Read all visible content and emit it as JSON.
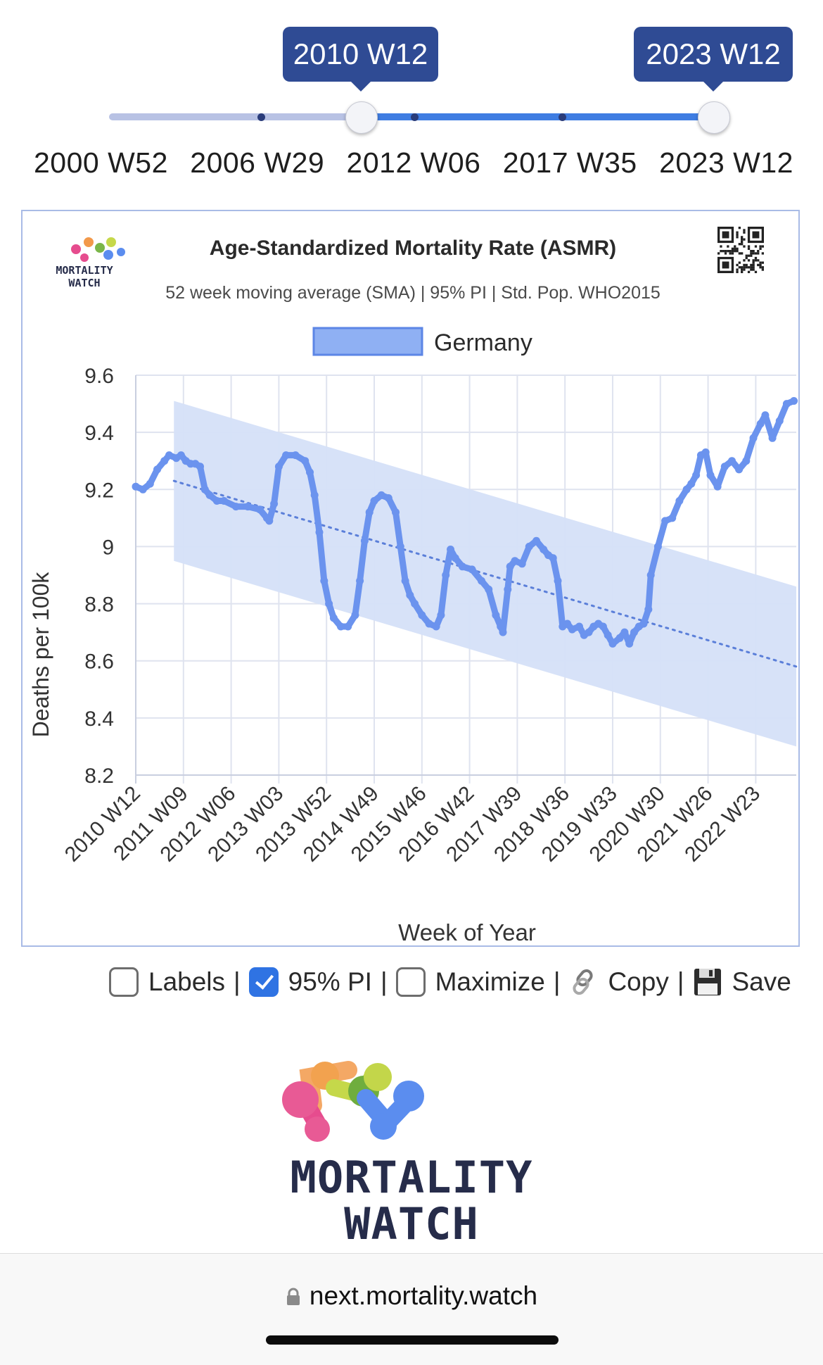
{
  "slider": {
    "start_label": "2010 W12",
    "end_label": "2023 W12",
    "start_index": 2,
    "end_index": 4,
    "range_labels": [
      "2000 W52",
      "2006 W29",
      "2012 W06",
      "2017 W35",
      "2023 W12"
    ]
  },
  "chart_header": {
    "logo_text_line1": "MORTALITY",
    "logo_text_line2": "WATCH"
  },
  "chart_data": {
    "type": "line",
    "title": "Age-Standardized Mortality Rate (ASMR)",
    "subtitle": "52 week moving average (SMA) | 95% PI | Std. Pop. WHO2015",
    "xlabel": "Week of Year",
    "ylabel": "Deaths per 100k",
    "ylim": [
      8.2,
      9.6
    ],
    "y_ticks": [
      "9.6",
      "9.4",
      "9.2",
      "9",
      "8.8",
      "8.6",
      "8.4",
      "8.2"
    ],
    "y_tick_values": [
      9.6,
      9.4,
      9.2,
      9.0,
      8.8,
      8.6,
      8.4,
      8.2
    ],
    "x_ticks": [
      "2010 W12",
      "2011 W09",
      "2012 W06",
      "2013 W03",
      "2013 W52",
      "2014 W49",
      "2015 W46",
      "2016 W42",
      "2017 W39",
      "2018 W36",
      "2019 W33",
      "2020 W30",
      "2021 W26",
      "2022 W23"
    ],
    "x_range_years": [
      2010.2,
      2024.05
    ],
    "legend": {
      "label": "Germany",
      "placement": "top-center"
    },
    "grid": true,
    "series_color": "#6b93ee",
    "band_color": "#d5e0f8",
    "series": [
      {
        "name": "Germany",
        "x": [
          2010.2,
          2010.35,
          2010.5,
          2010.65,
          2010.8,
          2010.9,
          2011.05,
          2011.15,
          2011.25,
          2011.35,
          2011.45,
          2011.55,
          2011.65,
          2011.75,
          2011.9,
          2012.05,
          2012.3,
          2012.55,
          2012.8,
          2012.95,
          2013.0,
          2013.1,
          2013.2,
          2013.35,
          2013.55,
          2013.75,
          2013.85,
          2013.95,
          2014.05,
          2014.15,
          2014.25,
          2014.35,
          2014.5,
          2014.65,
          2014.8,
          2014.9,
          2015.0,
          2015.1,
          2015.2,
          2015.35,
          2015.5,
          2015.65,
          2015.75,
          2015.85,
          2015.95,
          2016.05,
          2016.2,
          2016.35,
          2016.5,
          2016.6,
          2016.7,
          2016.8,
          2016.9,
          2017.05,
          2017.25,
          2017.45,
          2017.6,
          2017.75,
          2017.85,
          2017.9,
          2018.0,
          2018.05,
          2018.15,
          2018.3,
          2018.45,
          2018.6,
          2018.75,
          2018.85,
          2018.95,
          2019.05,
          2019.15,
          2019.25,
          2019.35,
          2019.5,
          2019.6,
          2019.7,
          2019.8,
          2019.9,
          2020.0,
          2020.1,
          2020.2,
          2020.35,
          2020.45,
          2020.55,
          2020.65,
          2020.75,
          2020.85,
          2020.95,
          2021.0,
          2021.15,
          2021.3,
          2021.45,
          2021.6,
          2021.75,
          2021.85,
          2021.95,
          2022.05,
          2022.15,
          2022.25,
          2022.4,
          2022.55,
          2022.7,
          2022.85,
          2023.0,
          2023.15,
          2023.3,
          2023.4,
          2023.55,
          2023.7,
          2023.85,
          2024.0
        ],
        "values": [
          9.21,
          9.2,
          9.22,
          9.27,
          9.3,
          9.32,
          9.31,
          9.32,
          9.3,
          9.29,
          9.29,
          9.28,
          9.2,
          9.18,
          9.16,
          9.16,
          9.14,
          9.14,
          9.13,
          9.1,
          9.09,
          9.15,
          9.28,
          9.32,
          9.32,
          9.3,
          9.26,
          9.18,
          9.05,
          8.88,
          8.8,
          8.75,
          8.72,
          8.72,
          8.76,
          8.88,
          9.02,
          9.12,
          9.16,
          9.18,
          9.17,
          9.12,
          9.0,
          8.88,
          8.83,
          8.8,
          8.76,
          8.73,
          8.72,
          8.76,
          8.9,
          8.99,
          8.96,
          8.93,
          8.92,
          8.88,
          8.85,
          8.76,
          8.72,
          8.7,
          8.85,
          8.93,
          8.95,
          8.94,
          9.0,
          9.02,
          8.99,
          8.97,
          8.96,
          8.88,
          8.72,
          8.73,
          8.71,
          8.72,
          8.69,
          8.7,
          8.72,
          8.73,
          8.72,
          8.69,
          8.66,
          8.68,
          8.7,
          8.66,
          8.7,
          8.72,
          8.73,
          8.78,
          8.9,
          9.0,
          9.09,
          9.1,
          9.16,
          9.2,
          9.22,
          9.25,
          9.32,
          9.33,
          9.25,
          9.21,
          9.28,
          9.3,
          9.27,
          9.3,
          9.38,
          9.43,
          9.46,
          9.38,
          9.44,
          9.5,
          9.51
        ]
      },
      {
        "name": "Baseline",
        "x": [
          2011.0,
          2024.05
        ],
        "values": [
          9.23,
          8.58
        ]
      }
    ],
    "prediction_interval": {
      "x": [
        2011.0,
        2024.05
      ],
      "upper": [
        9.51,
        8.86
      ],
      "lower": [
        8.95,
        8.3
      ]
    }
  },
  "controls": {
    "labels_label": "Labels",
    "labels_checked": false,
    "pi_label": "95% PI",
    "pi_checked": true,
    "maximize_label": "Maximize",
    "maximize_checked": false,
    "copy_label": "Copy",
    "save_label": "Save",
    "separator": "|"
  },
  "footer": {
    "brand_line1": "MORTALITY",
    "brand_line2": "WATCH",
    "url": "next.mortality.watch"
  }
}
